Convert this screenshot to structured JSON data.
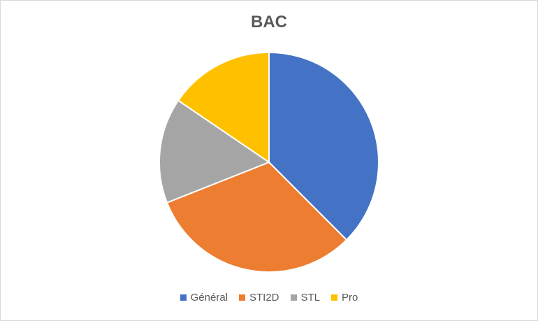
{
  "chart_data": {
    "type": "pie",
    "title": "BAC",
    "categories": [
      "Général",
      "STI2D",
      "STL",
      "Pro"
    ],
    "values": [
      37.5,
      31.5,
      15.5,
      15.5
    ],
    "colors": [
      "#4472c4",
      "#ed7d31",
      "#a5a5a5",
      "#ffc000"
    ],
    "legend_position": "bottom"
  }
}
